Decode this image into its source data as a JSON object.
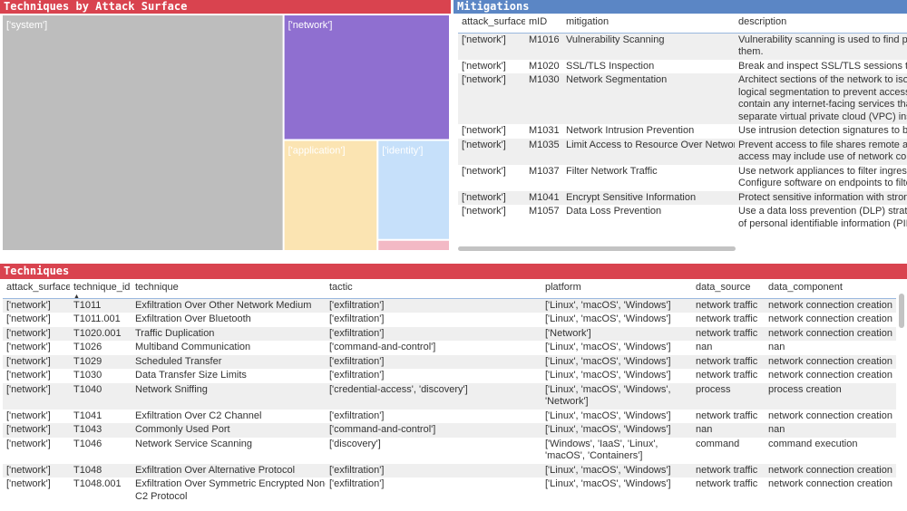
{
  "treemap": {
    "title": "Techniques by Attack Surface",
    "tiles": [
      {
        "label": "['system']",
        "value": 83,
        "color": "#bdbdbd"
      },
      {
        "label": "['network']",
        "value": 26,
        "color": "#8f6fd0"
      },
      {
        "label": "['application']",
        "value": 13,
        "color": "#fbe4b2"
      },
      {
        "label": "['identity']",
        "value": 9,
        "color": "#c6e0fa"
      },
      {
        "label": null,
        "value": 1,
        "color": "#f3b9c5"
      }
    ]
  },
  "mitigations": {
    "title": "Mitigations",
    "columns": [
      "attack_surface",
      "mID",
      "mitigation",
      "description"
    ],
    "rows": [
      [
        "['network']",
        "M1016",
        "Vulnerability Scanning",
        "Vulnerability scanning is used to find po\nthem."
      ],
      [
        "['network']",
        "M1020",
        "SSL/TLS Inspection",
        "Break and inspect SSL/TLS sessions to lo"
      ],
      [
        "['network']",
        "M1030",
        "Network Segmentation",
        "Architect sections of the network to isol\nlogical segmentation to prevent access\ncontain any internet-facing services tha\nseparate virtual private cloud (VPC) ins"
      ],
      [
        "['network']",
        "M1031",
        "Network Intrusion Prevention",
        "Use intrusion detection signatures to bl"
      ],
      [
        "['network']",
        "M1035",
        "Limit Access to Resource Over Network",
        "Prevent access to file shares remote acc\naccess may include use of network conc"
      ],
      [
        "['network']",
        "M1037",
        "Filter Network Traffic",
        "Use network appliances to filter ingress\nConfigure software on endpoints to filte"
      ],
      [
        "['network']",
        "M1041",
        "Encrypt Sensitive Information",
        "Protect sensitive information with stron"
      ],
      [
        "['network']",
        "M1057",
        "Data Loss Prevention",
        "Use a data loss prevention (DLP) strateg\nof personal identifiable information (PII)"
      ]
    ]
  },
  "techniques": {
    "title": "Techniques",
    "columns": [
      "attack_surface",
      "technique_id",
      "technique",
      "tactic",
      "platform",
      "data_source",
      "data_component"
    ],
    "rows": [
      [
        "['network']",
        "T1011",
        "Exfiltration Over Other Network Medium",
        "['exfiltration']",
        "['Linux', 'macOS', 'Windows']",
        "network traffic",
        "network connection creation"
      ],
      [
        "['network']",
        "T1011.001",
        "Exfiltration Over Bluetooth",
        "['exfiltration']",
        "['Linux', 'macOS', 'Windows']",
        "network traffic",
        "network connection creation"
      ],
      [
        "['network']",
        "T1020.001",
        "Traffic Duplication",
        "['exfiltration']",
        "['Network']",
        "network traffic",
        "network connection creation"
      ],
      [
        "['network']",
        "T1026",
        "Multiband Communication",
        "['command-and-control']",
        "['Linux', 'macOS', 'Windows']",
        "nan",
        "nan"
      ],
      [
        "['network']",
        "T1029",
        "Scheduled Transfer",
        "['exfiltration']",
        "['Linux', 'macOS', 'Windows']",
        "network traffic",
        "network connection creation"
      ],
      [
        "['network']",
        "T1030",
        "Data Transfer Size Limits",
        "['exfiltration']",
        "['Linux', 'macOS', 'Windows']",
        "network traffic",
        "network connection creation"
      ],
      [
        "['network']",
        "T1040",
        "Network Sniffing",
        "['credential-access', 'discovery']",
        "['Linux', 'macOS', 'Windows',\n'Network']",
        "process",
        "process creation"
      ],
      [
        "['network']",
        "T1041",
        "Exfiltration Over C2 Channel",
        "['exfiltration']",
        "['Linux', 'macOS', 'Windows']",
        "network traffic",
        "network connection creation"
      ],
      [
        "['network']",
        "T1043",
        "Commonly Used Port",
        "['command-and-control']",
        "['Linux', 'macOS', 'Windows']",
        "nan",
        "nan"
      ],
      [
        "['network']",
        "T1046",
        "Network Service Scanning",
        "['discovery']",
        "['Windows', 'IaaS', 'Linux',\n'macOS', 'Containers']",
        "command",
        "command execution"
      ],
      [
        "['network']",
        "T1048",
        "Exfiltration Over Alternative Protocol",
        "['exfiltration']",
        "['Linux', 'macOS', 'Windows']",
        "network traffic",
        "network connection creation"
      ],
      [
        "['network']",
        "T1048.001",
        "Exfiltration Over Symmetric Encrypted Non-\nC2 Protocol",
        "['exfiltration']",
        "['Linux', 'macOS', 'Windows']",
        "network traffic",
        "network connection creation"
      ]
    ]
  }
}
